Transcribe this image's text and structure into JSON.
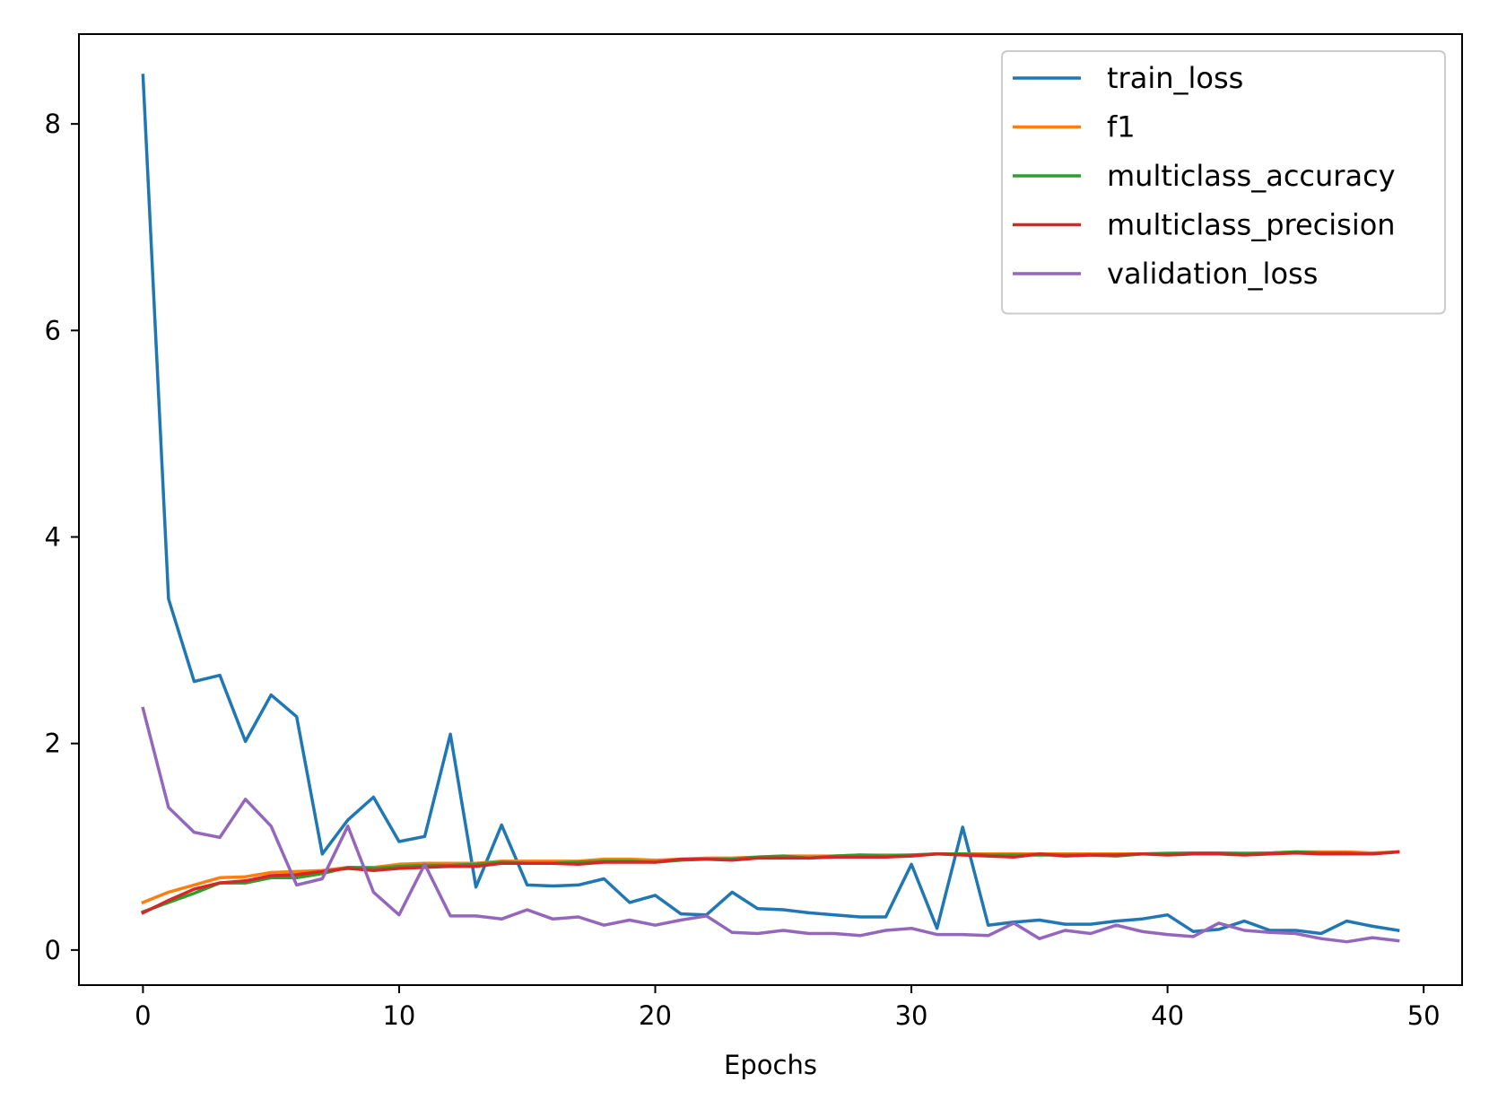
{
  "chart_data": {
    "type": "line",
    "title": "",
    "xlabel": "Epochs",
    "ylabel": "",
    "xlim": [
      -2.5,
      51.5
    ],
    "ylim": [
      -0.34,
      8.87
    ],
    "xticks": [
      0,
      10,
      20,
      30,
      40,
      50
    ],
    "yticks": [
      0,
      2,
      4,
      6,
      8
    ],
    "grid": false,
    "legend_position": "top-right",
    "x": [
      0,
      1,
      2,
      3,
      4,
      5,
      6,
      7,
      8,
      9,
      10,
      11,
      12,
      13,
      14,
      15,
      16,
      17,
      18,
      19,
      20,
      21,
      22,
      23,
      24,
      25,
      26,
      27,
      28,
      29,
      30,
      31,
      32,
      33,
      34,
      35,
      36,
      37,
      38,
      39,
      40,
      41,
      42,
      43,
      44,
      45,
      46,
      47,
      48,
      49
    ],
    "series": [
      {
        "name": "train_loss",
        "color": "#1f77b4",
        "values": [
          8.47,
          3.4,
          2.6,
          2.66,
          2.02,
          2.47,
          2.26,
          0.93,
          1.26,
          1.48,
          1.05,
          1.1,
          2.09,
          0.61,
          1.21,
          0.63,
          0.62,
          0.63,
          0.69,
          0.46,
          0.53,
          0.35,
          0.34,
          0.56,
          0.4,
          0.39,
          0.36,
          0.34,
          0.32,
          0.32,
          0.83,
          0.21,
          1.19,
          0.24,
          0.27,
          0.29,
          0.25,
          0.25,
          0.28,
          0.3,
          0.34,
          0.18,
          0.2,
          0.28,
          0.19,
          0.19,
          0.16,
          0.28,
          0.23,
          0.19
        ]
      },
      {
        "name": "f1",
        "color": "#ff7f0e",
        "values": [
          0.46,
          0.56,
          0.63,
          0.7,
          0.71,
          0.75,
          0.76,
          0.77,
          0.8,
          0.8,
          0.83,
          0.84,
          0.84,
          0.84,
          0.86,
          0.86,
          0.86,
          0.86,
          0.88,
          0.88,
          0.87,
          0.88,
          0.89,
          0.89,
          0.9,
          0.91,
          0.91,
          0.91,
          0.92,
          0.92,
          0.92,
          0.93,
          0.93,
          0.93,
          0.93,
          0.93,
          0.93,
          0.93,
          0.93,
          0.93,
          0.94,
          0.94,
          0.94,
          0.94,
          0.94,
          0.95,
          0.95,
          0.95,
          0.94,
          0.95
        ]
      },
      {
        "name": "multiclass_accuracy",
        "color": "#2ca02c",
        "values": [
          0.37,
          0.46,
          0.55,
          0.65,
          0.65,
          0.7,
          0.7,
          0.74,
          0.8,
          0.79,
          0.81,
          0.82,
          0.82,
          0.83,
          0.85,
          0.84,
          0.84,
          0.85,
          0.86,
          0.86,
          0.85,
          0.87,
          0.88,
          0.88,
          0.9,
          0.91,
          0.89,
          0.91,
          0.92,
          0.91,
          0.92,
          0.93,
          0.93,
          0.92,
          0.92,
          0.92,
          0.92,
          0.92,
          0.91,
          0.93,
          0.93,
          0.94,
          0.94,
          0.93,
          0.94,
          0.95,
          0.94,
          0.94,
          0.93,
          0.95
        ]
      },
      {
        "name": "multiclass_precision",
        "color": "#d62728",
        "values": [
          0.36,
          0.48,
          0.59,
          0.65,
          0.67,
          0.72,
          0.73,
          0.76,
          0.79,
          0.77,
          0.79,
          0.8,
          0.81,
          0.81,
          0.84,
          0.84,
          0.84,
          0.83,
          0.85,
          0.85,
          0.85,
          0.88,
          0.88,
          0.87,
          0.89,
          0.89,
          0.89,
          0.9,
          0.9,
          0.9,
          0.91,
          0.93,
          0.92,
          0.91,
          0.9,
          0.93,
          0.91,
          0.92,
          0.92,
          0.93,
          0.92,
          0.93,
          0.93,
          0.92,
          0.93,
          0.94,
          0.93,
          0.93,
          0.93,
          0.95
        ]
      },
      {
        "name": "validation_loss",
        "color": "#9467bd",
        "values": [
          2.34,
          1.38,
          1.14,
          1.09,
          1.46,
          1.2,
          0.63,
          0.69,
          1.2,
          0.56,
          0.34,
          0.83,
          0.33,
          0.33,
          0.3,
          0.39,
          0.3,
          0.32,
          0.24,
          0.29,
          0.24,
          0.29,
          0.33,
          0.17,
          0.16,
          0.19,
          0.16,
          0.16,
          0.14,
          0.19,
          0.21,
          0.15,
          0.15,
          0.14,
          0.26,
          0.11,
          0.19,
          0.16,
          0.24,
          0.18,
          0.15,
          0.13,
          0.26,
          0.19,
          0.17,
          0.16,
          0.11,
          0.08,
          0.12,
          0.09
        ]
      }
    ]
  }
}
